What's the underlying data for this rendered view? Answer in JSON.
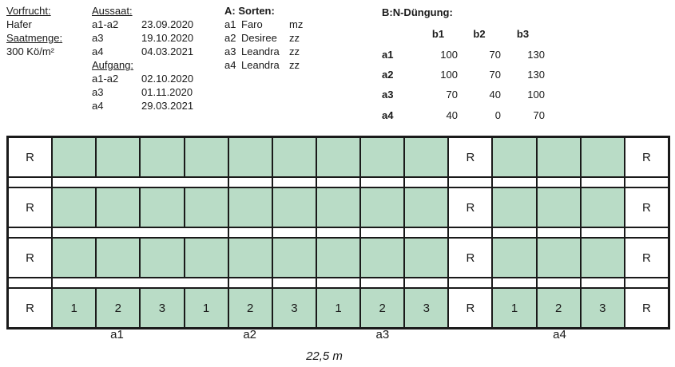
{
  "header": {
    "vorfrucht": {
      "label": "Vorfrucht:",
      "value": "Hafer"
    },
    "saatmenge": {
      "label": "Saatmenge:",
      "value": "300 Kö/m²"
    },
    "aussaat": {
      "title": "Aussaat:",
      "rows": [
        {
          "key": "a1-a2",
          "date": "23.09.2020"
        },
        {
          "key": "a3",
          "date": "19.10.2020"
        },
        {
          "key": "a4",
          "date": "04.03.2021"
        }
      ]
    },
    "aufgang": {
      "title": "Aufgang:",
      "rows": [
        {
          "key": "a1-a2",
          "date": "02.10.2020"
        },
        {
          "key": "a3",
          "date": "01.11.2020"
        },
        {
          "key": "a4",
          "date": "29.03.2021"
        }
      ]
    },
    "sorten": {
      "title": "A: Sorten:",
      "rows": [
        {
          "code": "a1",
          "name": "Faro",
          "type": "mz"
        },
        {
          "code": "a2",
          "name": "Desiree",
          "type": "zz"
        },
        {
          "code": "a3",
          "name": "Leandra",
          "type": "zz"
        },
        {
          "code": "a4",
          "name": "Leandra",
          "type": "zz"
        }
      ]
    },
    "duengung": {
      "title": "B:N-Düngung:",
      "cols": [
        "b1",
        "b2",
        "b3"
      ],
      "rows": [
        {
          "code": "a1",
          "values": [
            100,
            70,
            130
          ]
        },
        {
          "code": "a2",
          "values": [
            100,
            70,
            130
          ]
        },
        {
          "code": "a3",
          "values": [
            70,
            40,
            100
          ]
        },
        {
          "code": "a4",
          "values": [
            40,
            0,
            70
          ]
        }
      ]
    }
  },
  "plot": {
    "guard_label": "R",
    "rep_numbers": [
      "1",
      "2",
      "3"
    ],
    "group_labels": [
      "a1",
      "a2",
      "a3",
      "a4"
    ],
    "width_label": "22,5 m",
    "colors": {
      "plot_green": "#b9dcc6",
      "line": "#1a1a1a",
      "background": "#ffffff"
    }
  }
}
